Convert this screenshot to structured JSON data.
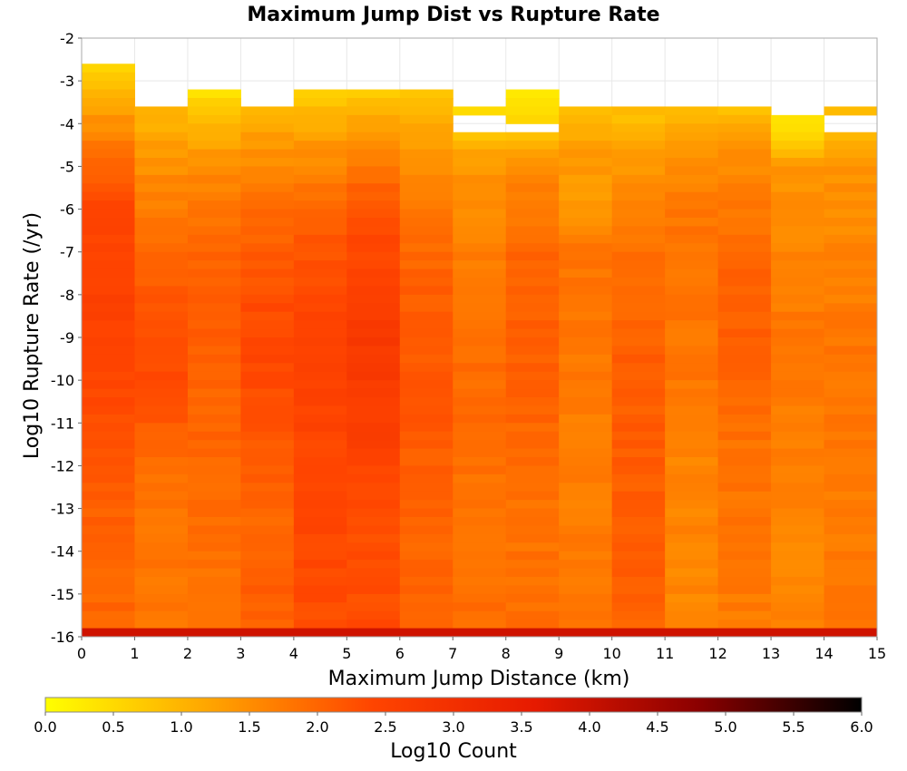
{
  "chart_data": {
    "type": "heatmap",
    "title": "Maximum Jump Dist vs Rupture Rate",
    "xlabel": "Maximum Jump Distance (km)",
    "ylabel": "Log10 Rupture Rate (/yr)",
    "xlim": [
      0,
      15
    ],
    "ylim": [
      -16,
      -2
    ],
    "x_ticks": [
      "0",
      "1",
      "2",
      "3",
      "4",
      "5",
      "6",
      "7",
      "8",
      "9",
      "10",
      "11",
      "12",
      "13",
      "14",
      "15"
    ],
    "y_ticks": [
      "-2",
      "-3",
      "-4",
      "-5",
      "-6",
      "-7",
      "-8",
      "-9",
      "-10",
      "-11",
      "-12",
      "-13",
      "-14",
      "-15",
      "-16"
    ],
    "grid": true,
    "x_bin_width": 1,
    "y_bin_height": 0.2,
    "colorbar": {
      "label": "Log10 Count",
      "range": [
        0,
        6
      ],
      "ticks": [
        "0.0",
        "0.5",
        "1.0",
        "1.5",
        "2.0",
        "2.5",
        "3.0",
        "3.5",
        "4.0",
        "4.5",
        "5.0",
        "5.5",
        "6.0"
      ],
      "colors": [
        "#ffff00",
        "#ffa500",
        "#ff4500",
        "#e61a00",
        "#8b0000",
        "#000000"
      ]
    },
    "bottom_row": {
      "y_range": [
        -16,
        -15.8
      ],
      "log10_count": 3.9
    },
    "columns": [
      {
        "x": [
          0,
          1
        ],
        "y_top": -2.6,
        "profile": [
          [
            -2.6,
            0.6
          ],
          [
            -3.5,
            1.2
          ],
          [
            -5,
            2.0
          ],
          [
            -6,
            2.4
          ],
          [
            -8,
            2.5
          ],
          [
            -10,
            2.4
          ],
          [
            -12,
            2.2
          ],
          [
            -14,
            2.0
          ],
          [
            -15.8,
            2.0
          ]
        ]
      },
      {
        "x": [
          1,
          2
        ],
        "y_top": -3.6,
        "profile": [
          [
            -3.6,
            0.9
          ],
          [
            -4.5,
            1.3
          ],
          [
            -5.5,
            1.6
          ],
          [
            -7,
            2.0
          ],
          [
            -9,
            2.3
          ],
          [
            -10.5,
            2.3
          ],
          [
            -12,
            1.9
          ],
          [
            -14,
            1.8
          ],
          [
            -15.8,
            1.8
          ]
        ]
      },
      {
        "x": [
          2,
          3
        ],
        "y_top": -3.2,
        "profile": [
          [
            -3.2,
            0.4
          ],
          [
            -4,
            1.0
          ],
          [
            -5,
            1.5
          ],
          [
            -7,
            2.0
          ],
          [
            -9,
            2.1
          ],
          [
            -11,
            2.0
          ],
          [
            -13,
            1.9
          ],
          [
            -15.8,
            1.8
          ]
        ]
      },
      {
        "x": [
          3,
          4
        ],
        "y_top": -3.6,
        "profile": [
          [
            -3.6,
            0.9
          ],
          [
            -4.5,
            1.4
          ],
          [
            -6,
            1.9
          ],
          [
            -8,
            2.3
          ],
          [
            -9.5,
            2.4
          ],
          [
            -11,
            2.2
          ],
          [
            -13,
            2.0
          ],
          [
            -15.8,
            2.1
          ]
        ]
      },
      {
        "x": [
          4,
          5
        ],
        "y_top": -3.2,
        "profile": [
          [
            -3.2,
            0.6
          ],
          [
            -4.5,
            1.4
          ],
          [
            -6,
            2.0
          ],
          [
            -8,
            2.4
          ],
          [
            -10,
            2.5
          ],
          [
            -12,
            2.4
          ],
          [
            -14,
            2.4
          ],
          [
            -15.8,
            2.3
          ]
        ]
      },
      {
        "x": [
          5,
          6
        ],
        "y_top": -3.2,
        "profile": [
          [
            -3.2,
            0.6
          ],
          [
            -4.5,
            1.6
          ],
          [
            -6,
            2.2
          ],
          [
            -8,
            2.6
          ],
          [
            -9,
            2.75
          ],
          [
            -11,
            2.6
          ],
          [
            -13,
            2.3
          ],
          [
            -15.8,
            2.3
          ]
        ]
      },
      {
        "x": [
          6,
          7
        ],
        "y_top": -3.2,
        "profile": [
          [
            -3.2,
            0.7
          ],
          [
            -4.5,
            1.3
          ],
          [
            -6,
            1.8
          ],
          [
            -8,
            2.1
          ],
          [
            -10,
            2.2
          ],
          [
            -12,
            2.1
          ],
          [
            -14,
            2.0
          ],
          [
            -15.8,
            2.0
          ]
        ]
      },
      {
        "x": [
          7,
          8
        ],
        "y_top": -3.6,
        "profile": [
          [
            -3.6,
            0.5
          ],
          [
            -4.2,
            0.8
          ],
          [
            -5,
            1.4
          ],
          [
            -7,
            1.7
          ],
          [
            -9,
            1.9
          ],
          [
            -11,
            1.9
          ],
          [
            -13,
            1.8
          ],
          [
            -15.8,
            1.9
          ]
        ]
      },
      {
        "x": [
          8,
          9
        ],
        "y_top": -3.2,
        "profile": [
          [
            -3.2,
            0.3
          ],
          [
            -4,
            0.5
          ],
          [
            -5,
            1.5
          ],
          [
            -7,
            2.0
          ],
          [
            -9,
            2.1
          ],
          [
            -11,
            2.0
          ],
          [
            -13,
            1.8
          ],
          [
            -15.8,
            1.9
          ]
        ]
      },
      {
        "x": [
          9,
          10
        ],
        "y_top": -3.6,
        "profile": [
          [
            -3.6,
            0.8
          ],
          [
            -4.5,
            1.3
          ],
          [
            -6,
            1.4
          ],
          [
            -7,
            1.8
          ],
          [
            -9,
            1.8
          ],
          [
            -11,
            1.7
          ],
          [
            -13,
            1.7
          ],
          [
            -15.8,
            1.8
          ]
        ]
      },
      {
        "x": [
          10,
          11
        ],
        "y_top": -3.6,
        "profile": [
          [
            -3.6,
            0.8
          ],
          [
            -4.5,
            1.2
          ],
          [
            -6,
            1.7
          ],
          [
            -8,
            2.0
          ],
          [
            -10,
            2.1
          ],
          [
            -12,
            2.1
          ],
          [
            -14,
            2.1
          ],
          [
            -15.8,
            2.0
          ]
        ]
      },
      {
        "x": [
          11,
          12
        ],
        "y_top": -3.6,
        "profile": [
          [
            -3.6,
            0.8
          ],
          [
            -4.5,
            1.3
          ],
          [
            -6,
            1.8
          ],
          [
            -8,
            1.8
          ],
          [
            -10,
            1.8
          ],
          [
            -12,
            1.6
          ],
          [
            -14,
            1.6
          ],
          [
            -15.8,
            1.6
          ]
        ]
      },
      {
        "x": [
          12,
          13
        ],
        "y_top": -3.6,
        "profile": [
          [
            -3.6,
            0.8
          ],
          [
            -4.5,
            1.4
          ],
          [
            -6,
            1.8
          ],
          [
            -8,
            2.1
          ],
          [
            -10,
            2.0
          ],
          [
            -12,
            1.8
          ],
          [
            -14,
            1.8
          ],
          [
            -15.8,
            1.7
          ]
        ]
      },
      {
        "x": [
          13,
          14
        ],
        "y_top": -3.8,
        "profile": [
          [
            -3.8,
            0.2
          ],
          [
            -4.4,
            0.7
          ],
          [
            -5,
            1.4
          ],
          [
            -7,
            1.6
          ],
          [
            -9,
            1.8
          ],
          [
            -11,
            1.7
          ],
          [
            -13,
            1.6
          ],
          [
            -15.8,
            1.6
          ]
        ]
      },
      {
        "x": [
          14,
          15
        ],
        "y_top": -3.6,
        "profile": [
          [
            -3.6,
            0.8
          ],
          [
            -4.2,
            1.0
          ],
          [
            -5,
            1.4
          ],
          [
            -7,
            1.6
          ],
          [
            -9,
            1.8
          ],
          [
            -11,
            1.8
          ],
          [
            -13,
            1.7
          ],
          [
            -15.8,
            1.8
          ]
        ]
      }
    ],
    "gaps": [
      {
        "x": [
          7,
          8
        ],
        "y": [
          -4.2,
          -3.9
        ]
      },
      {
        "x": [
          8,
          9
        ],
        "y": [
          -4.2,
          -4.0
        ]
      },
      {
        "x": [
          14,
          15
        ],
        "y": [
          -4.2,
          -3.8
        ]
      }
    ]
  }
}
